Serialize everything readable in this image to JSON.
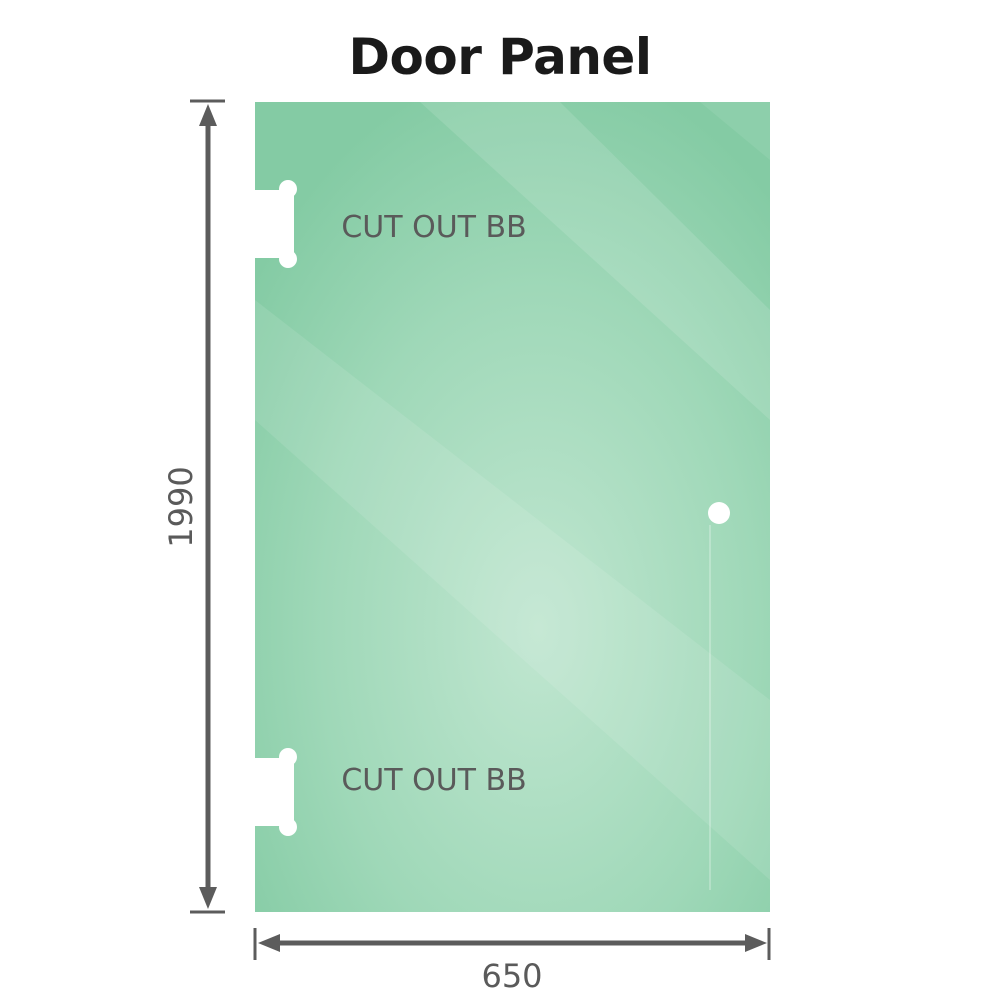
{
  "title": "Door Panel",
  "cutout_top_label": "CUT OUT BB",
  "cutout_bottom_label": "CUT OUT BB",
  "height_label": "1990",
  "width_label": "650",
  "colors": {
    "glass": "#86cca6",
    "glass_light": "#b9e3cb",
    "dimension": "#5c5c5c"
  }
}
